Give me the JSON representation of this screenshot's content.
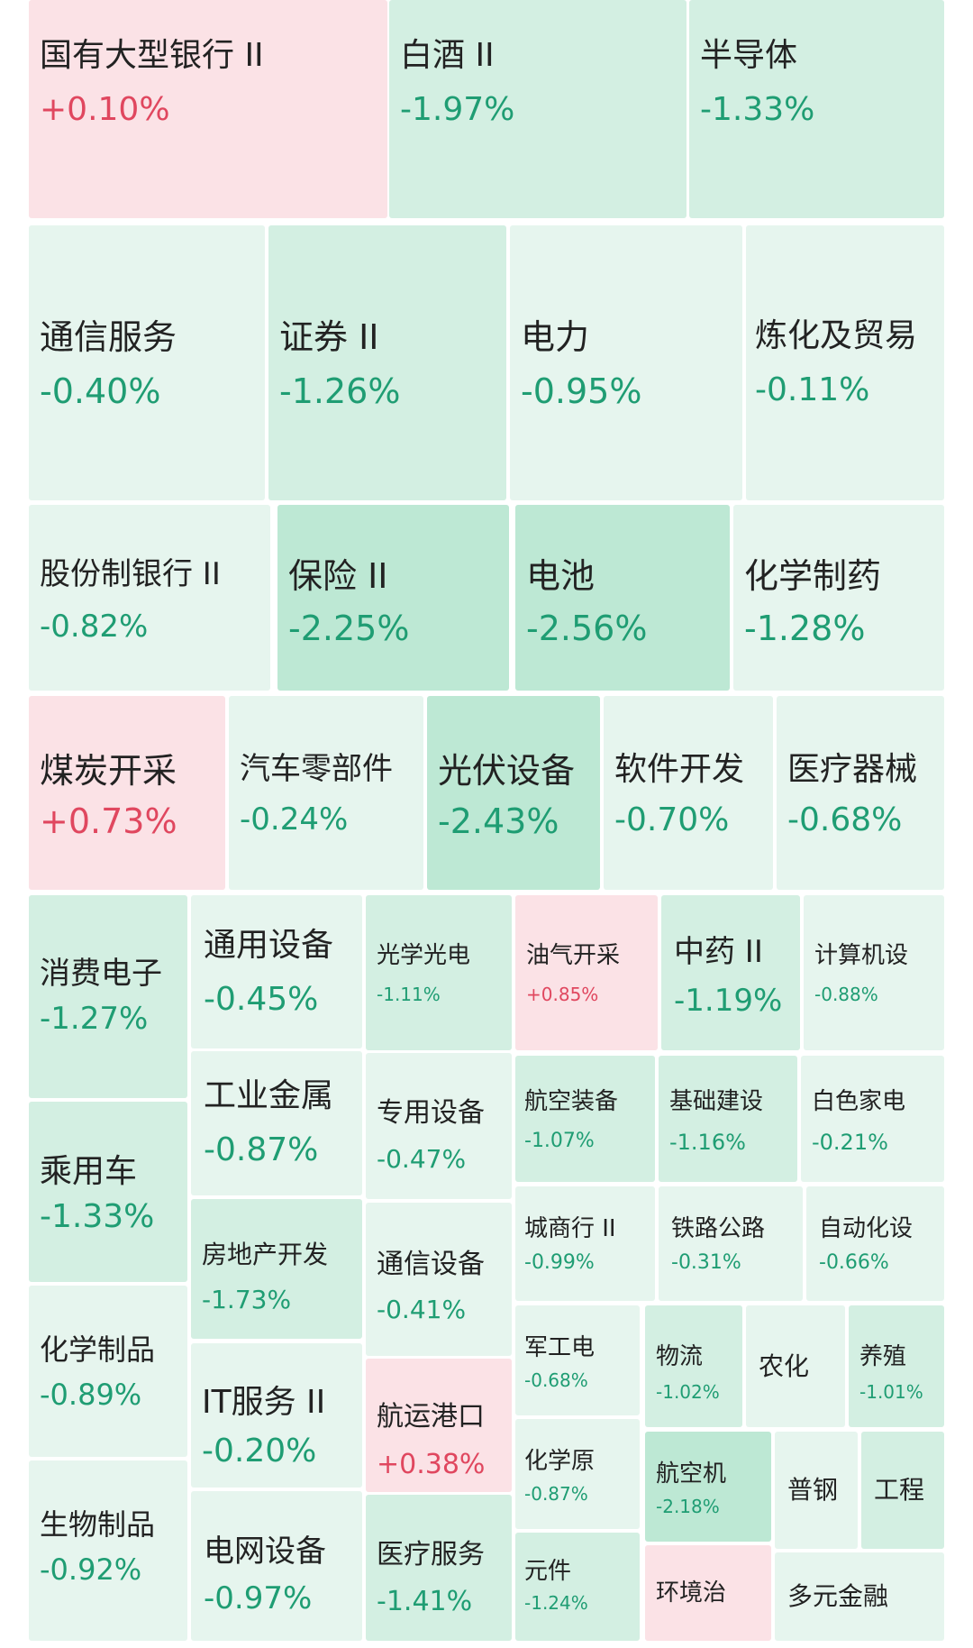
{
  "colors": {
    "name_text": "#222222",
    "up_text": "#e0475f",
    "down_text": "#1f9d73",
    "up_fill": "#fbe2e6",
    "down_fill_light": "#e6f5ee",
    "down_fill_mid": "#d3efe2",
    "down_fill_strong": "#bde8d4"
  },
  "sectors": [
    {
      "name": "国有大型银行 II",
      "change": "+0.10%"
    },
    {
      "name": "白酒 II",
      "change": "-1.97%"
    },
    {
      "name": "半导体",
      "change": "-1.33%"
    },
    {
      "name": "通信服务",
      "change": "-0.40%"
    },
    {
      "name": "证券 II",
      "change": "-1.26%"
    },
    {
      "name": "电力",
      "change": "-0.95%"
    },
    {
      "name": "炼化及贸易",
      "change": "-0.11%"
    },
    {
      "name": "股份制银行 II",
      "change": "-0.82%"
    },
    {
      "name": "保险 II",
      "change": "-2.25%"
    },
    {
      "name": "电池",
      "change": "-2.56%"
    },
    {
      "name": "化学制药",
      "change": "-1.28%"
    },
    {
      "name": "煤炭开采",
      "change": "+0.73%"
    },
    {
      "name": "汽车零部件",
      "change": "-0.24%"
    },
    {
      "name": "光伏设备",
      "change": "-2.43%"
    },
    {
      "name": "软件开发",
      "change": "-0.70%"
    },
    {
      "name": "医疗器械",
      "change": "-0.68%"
    },
    {
      "name": "消费电子",
      "change": "-1.27%"
    },
    {
      "name": "乘用车",
      "change": "-1.33%"
    },
    {
      "name": "化学制品",
      "change": "-0.89%"
    },
    {
      "name": "生物制品",
      "change": "-0.92%"
    },
    {
      "name": "通用设备",
      "change": "-0.45%"
    },
    {
      "name": "工业金属",
      "change": "-0.87%"
    },
    {
      "name": "房地产开发",
      "change": "-1.73%"
    },
    {
      "name": "IT服务 II",
      "change": "-0.20%"
    },
    {
      "name": "电网设备",
      "change": "-0.97%"
    },
    {
      "name": "光学光电",
      "change": "-1.11%"
    },
    {
      "name": "专用设备",
      "change": "-0.47%"
    },
    {
      "name": "通信设备",
      "change": "-0.41%"
    },
    {
      "name": "航运港口",
      "change": "+0.38%"
    },
    {
      "name": "医疗服务",
      "change": "-1.41%"
    },
    {
      "name": "油气开采",
      "change": "+0.85%"
    },
    {
      "name": "中药 II",
      "change": "-1.19%"
    },
    {
      "name": "计算机设",
      "change": "-0.88%"
    },
    {
      "name": "航空装备",
      "change": "-1.07%"
    },
    {
      "name": "基础建设",
      "change": "-1.16%"
    },
    {
      "name": "白色家电",
      "change": "-0.21%"
    },
    {
      "name": "城商行 II",
      "change": "-0.99%"
    },
    {
      "name": "铁路公路",
      "change": "-0.31%"
    },
    {
      "name": "自动化设",
      "change": "-0.66%"
    },
    {
      "name": "军工电",
      "change": "-0.68%"
    },
    {
      "name": "化学原",
      "change": "-0.87%"
    },
    {
      "name": "元件",
      "change": "-1.24%"
    },
    {
      "name": "物流",
      "change": "-1.02%"
    },
    {
      "name": "农化",
      "change": ""
    },
    {
      "name": "养殖",
      "change": "-1.01%"
    },
    {
      "name": "航空机",
      "change": "-2.18%"
    },
    {
      "name": "环境治",
      "change": ""
    },
    {
      "name": "普钢",
      "change": ""
    },
    {
      "name": "工程",
      "change": ""
    },
    {
      "name": "多元金融",
      "change": ""
    }
  ]
}
